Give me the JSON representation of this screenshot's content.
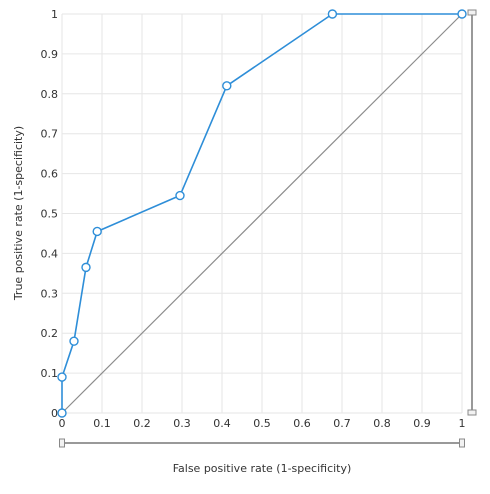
{
  "chart_data": {
    "type": "line",
    "xlabel": "False positive rate (1-specificity)",
    "ylabel": "True positive rate (1-specificity)",
    "xlim": [
      0,
      1
    ],
    "ylim": [
      0,
      1
    ],
    "x_ticks": [
      "0",
      "0.1",
      "0.2",
      "0.3",
      "0.4",
      "0.5",
      "0.6",
      "0.7",
      "0.8",
      "0.9",
      "1"
    ],
    "y_ticks": [
      "0",
      "0.1",
      "0.2",
      "0.3",
      "0.4",
      "0.5",
      "0.6",
      "0.7",
      "0.8",
      "0.9",
      "1"
    ],
    "grid": true,
    "series": [
      {
        "color": "#2e8ed8",
        "points": [
          {
            "x": 0,
            "y": 0
          },
          {
            "x": 0,
            "y": 0.09
          },
          {
            "x": 0.03,
            "y": 0.18
          },
          {
            "x": 0.06,
            "y": 0.365
          },
          {
            "x": 0.088,
            "y": 0.455
          },
          {
            "x": 0.295,
            "y": 0.545
          },
          {
            "x": 0.412,
            "y": 0.82
          },
          {
            "x": 0.676,
            "y": 1
          },
          {
            "x": 1,
            "y": 1
          }
        ]
      }
    ],
    "reference_line": {
      "from": [
        0,
        0
      ],
      "to": [
        1,
        1
      ],
      "color": "#8c8c8c"
    }
  }
}
